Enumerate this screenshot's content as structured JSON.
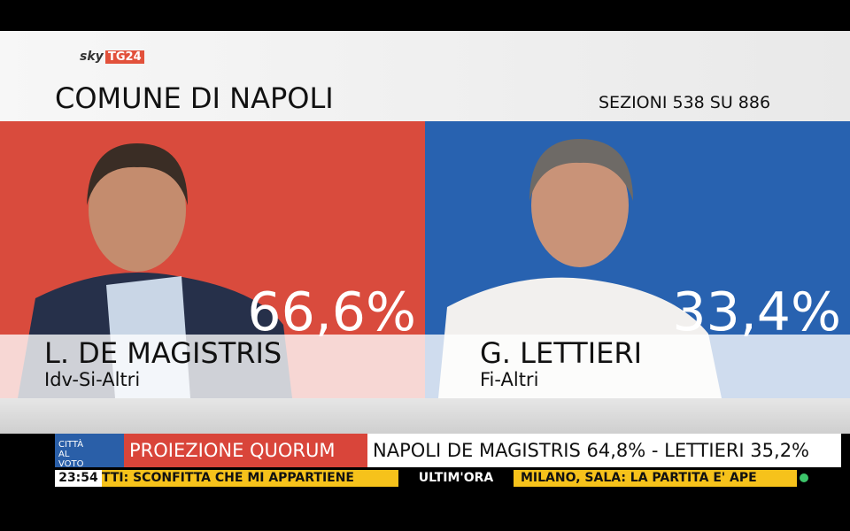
{
  "header": {
    "brand": "sky",
    "channel": "TG24",
    "title": "COMUNE DI NAPOLI",
    "sections": "SEZIONI 538 SU 886"
  },
  "candidates": [
    {
      "percent": "66,6%",
      "name": "L. DE MAGISTRIS",
      "party": "Idv-Si-Altri"
    },
    {
      "percent": "33,4%",
      "name": "G. LETTIERI",
      "party": "Fi-Altri"
    }
  ],
  "banner": {
    "logo": "CITTÀ AL VOTO",
    "label": "PROIEZIONE QUORUM",
    "text": "NAPOLI DE MAGISTRIS 64,8% - LETTIERI 35,2%"
  },
  "ticker": {
    "time": "23:54",
    "left": "TTI: SCONFITTA CHE MI APPARTIENE",
    "tag": "ULTIM'ORA",
    "right": "MILANO, SALA: LA PARTITA E' APE"
  }
}
